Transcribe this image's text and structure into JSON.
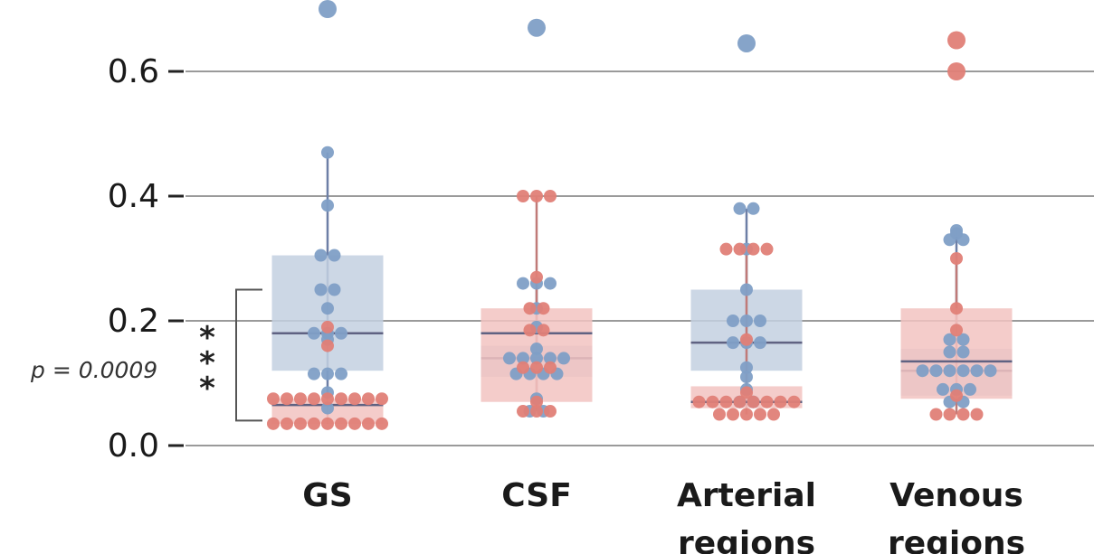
{
  "chart_data": {
    "type": "box",
    "categories": [
      "GS",
      "CSF",
      "Arterial regions",
      "Venous regions"
    ],
    "category_lines": [
      [
        "GS"
      ],
      [
        "CSF"
      ],
      [
        "Arterial",
        "regions"
      ],
      [
        "Venous",
        "regions"
      ]
    ],
    "yticks": [
      0.0,
      0.2,
      0.4,
      0.6
    ],
    "ytick_labels": [
      "0.0",
      "0.2",
      "0.4",
      "0.6"
    ],
    "ylim": [
      -0.03,
      0.72
    ],
    "grid": true,
    "colors": {
      "blue": "#7f9fc6",
      "red": "#e07f77",
      "blue_box": "#c3d0e1",
      "red_box": "#f2c3c1",
      "median": "#5f6282",
      "grid": "#9a9a9a"
    },
    "series": [
      {
        "key": "blue",
        "color": "#7f9fc6",
        "boxes": [
          {
            "q1": 0.12,
            "median": 0.18,
            "q3": 0.305,
            "whisker_low": 0.06,
            "whisker_high": 0.47
          },
          {
            "q1": 0.11,
            "median": 0.14,
            "q3": 0.16,
            "whisker_low": 0.055,
            "whisker_high": 0.26
          },
          {
            "q1": 0.12,
            "median": 0.165,
            "q3": 0.25,
            "whisker_low": 0.07,
            "whisker_high": 0.38
          },
          {
            "q1": 0.08,
            "median": 0.12,
            "q3": 0.155,
            "whisker_low": 0.07,
            "whisker_high": 0.35
          }
        ],
        "points": [
          [
            0.7,
            0.47,
            0.385,
            0.305,
            0.305,
            0.25,
            0.25,
            0.22,
            0.18,
            0.18,
            0.18,
            0.17,
            0.115,
            0.115,
            0.115,
            0.085,
            0.06
          ],
          [
            0.67,
            0.26,
            0.26,
            0.26,
            0.22,
            0.19,
            0.155,
            0.14,
            0.14,
            0.14,
            0.14,
            0.14,
            0.115,
            0.115,
            0.115,
            0.115,
            0.075,
            0.055,
            0.055
          ],
          [
            0.645,
            0.38,
            0.38,
            0.315,
            0.25,
            0.2,
            0.2,
            0.2,
            0.165,
            0.165,
            0.165,
            0.125,
            0.11,
            0.09,
            0.07,
            0.07
          ],
          [
            0.345,
            0.34,
            0.33,
            0.33,
            0.17,
            0.17,
            0.15,
            0.15,
            0.12,
            0.12,
            0.12,
            0.12,
            0.12,
            0.12,
            0.09,
            0.09,
            0.09,
            0.07,
            0.07
          ]
        ]
      },
      {
        "key": "red",
        "color": "#e07f77",
        "boxes": [
          {
            "q1": 0.035,
            "median": 0.065,
            "q3": 0.075,
            "whisker_low": 0.035,
            "whisker_high": 0.075
          },
          {
            "q1": 0.07,
            "median": 0.18,
            "q3": 0.22,
            "whisker_low": 0.055,
            "whisker_high": 0.4
          },
          {
            "q1": 0.06,
            "median": 0.07,
            "q3": 0.095,
            "whisker_low": 0.05,
            "whisker_high": 0.32
          },
          {
            "q1": 0.075,
            "median": 0.135,
            "q3": 0.22,
            "whisker_low": 0.05,
            "whisker_high": 0.3
          }
        ],
        "points": [
          [
            0.19,
            0.16,
            0.075,
            0.075,
            0.075,
            0.075,
            0.075,
            0.075,
            0.075,
            0.075,
            0.075,
            0.035,
            0.035,
            0.035,
            0.035,
            0.035,
            0.035,
            0.035,
            0.035,
            0.035
          ],
          [
            0.4,
            0.4,
            0.4,
            0.27,
            0.22,
            0.22,
            0.185,
            0.185,
            0.125,
            0.125,
            0.125,
            0.07,
            0.055,
            0.055,
            0.055
          ],
          [
            0.315,
            0.315,
            0.315,
            0.315,
            0.17,
            0.085,
            0.07,
            0.07,
            0.07,
            0.07,
            0.07,
            0.07,
            0.07,
            0.07,
            0.05,
            0.05,
            0.05,
            0.05,
            0.05
          ],
          [
            0.65,
            0.6,
            0.3,
            0.22,
            0.185,
            0.08,
            0.05,
            0.05,
            0.05,
            0.05
          ]
        ]
      }
    ],
    "annotations": [
      {
        "text": "p = 0.0009",
        "stars": "***",
        "bracket_low": 0.04,
        "bracket_high": 0.25,
        "category": "GS"
      }
    ]
  }
}
